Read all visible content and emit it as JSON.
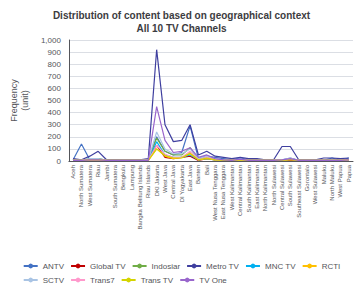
{
  "chart_data": {
    "type": "line",
    "title": "Distribution of content based on geographical context\nAll 10 TV Channels",
    "ylabel": "Frequency\n(unit)",
    "categories": [
      "Aceh",
      "North Sumatera",
      "West Sumatera",
      "Riau",
      "Jambi",
      "South Sumatera",
      "Bengkulu",
      "Lampung",
      "Bangka Belitung Islands",
      "Riau Islands",
      "DKI Jakarta",
      "West Java",
      "Central Java",
      "DI Yogyakarta",
      "East Java",
      "Banten",
      "Bali",
      "West Nusa Tenggara",
      "East Nusa Tenggara",
      "West Kalimantan",
      "Central Kalimantan",
      "South Kalimantan",
      "East Kalimantan",
      "North Kalimantan",
      "North Sulawesi",
      "Central Sulawesi",
      "South Sulawesi",
      "Southeast Sulawesi",
      "Gorontalo",
      "West Sulawesi",
      "Maluku",
      "North Maluku",
      "West Papua",
      "Papua"
    ],
    "series": [
      {
        "name": "ANTV",
        "color": "#4472C4",
        "values": [
          10,
          140,
          10,
          20,
          5,
          10,
          5,
          5,
          5,
          10,
          200,
          80,
          50,
          70,
          290,
          20,
          40,
          30,
          20,
          10,
          25,
          10,
          10,
          5,
          5,
          10,
          25,
          5,
          5,
          5,
          5,
          25,
          5,
          25
        ]
      },
      {
        "name": "Global TV",
        "color": "#C00000",
        "values": [
          5,
          5,
          5,
          10,
          5,
          5,
          5,
          5,
          5,
          5,
          130,
          30,
          20,
          30,
          40,
          5,
          20,
          10,
          10,
          5,
          10,
          5,
          5,
          5,
          5,
          5,
          10,
          5,
          5,
          5,
          5,
          5,
          5,
          10
        ]
      },
      {
        "name": "Indosiar",
        "color": "#70AD47",
        "values": [
          5,
          5,
          20,
          20,
          5,
          5,
          5,
          5,
          5,
          5,
          190,
          80,
          50,
          50,
          110,
          10,
          30,
          10,
          10,
          5,
          10,
          5,
          5,
          5,
          5,
          5,
          20,
          5,
          5,
          5,
          5,
          5,
          5,
          10
        ]
      },
      {
        "name": "Metro TV",
        "color": "#3F3F9F",
        "values": [
          20,
          10,
          40,
          80,
          10,
          10,
          10,
          10,
          10,
          20,
          920,
          300,
          160,
          170,
          300,
          50,
          80,
          40,
          30,
          20,
          30,
          20,
          20,
          10,
          10,
          120,
          120,
          10,
          10,
          10,
          25,
          25,
          20,
          25
        ]
      },
      {
        "name": "MNC TV",
        "color": "#00B0F0",
        "values": [
          5,
          5,
          10,
          10,
          5,
          5,
          5,
          5,
          5,
          5,
          160,
          50,
          30,
          30,
          50,
          10,
          20,
          10,
          5,
          5,
          10,
          5,
          5,
          5,
          5,
          5,
          15,
          5,
          5,
          5,
          5,
          5,
          5,
          10
        ]
      },
      {
        "name": "RCTI",
        "color": "#FFC000",
        "values": [
          5,
          5,
          10,
          10,
          5,
          5,
          5,
          5,
          5,
          5,
          100,
          40,
          20,
          30,
          60,
          10,
          20,
          10,
          5,
          5,
          10,
          5,
          5,
          5,
          5,
          5,
          15,
          5,
          5,
          5,
          5,
          5,
          5,
          10
        ]
      },
      {
        "name": "SCTV",
        "color": "#A9C4E4",
        "values": [
          5,
          5,
          20,
          20,
          5,
          5,
          5,
          5,
          5,
          10,
          240,
          100,
          60,
          60,
          100,
          20,
          40,
          15,
          10,
          5,
          15,
          5,
          5,
          5,
          5,
          10,
          25,
          5,
          5,
          5,
          5,
          5,
          5,
          10
        ]
      },
      {
        "name": "Trans7",
        "color": "#FF99CC",
        "values": [
          5,
          5,
          10,
          10,
          5,
          5,
          5,
          5,
          5,
          5,
          130,
          55,
          30,
          30,
          80,
          10,
          30,
          10,
          5,
          5,
          10,
          5,
          5,
          5,
          5,
          5,
          15,
          5,
          5,
          5,
          5,
          5,
          5,
          10
        ]
      },
      {
        "name": "Trans TV",
        "color": "#D4D400",
        "values": [
          5,
          5,
          10,
          10,
          5,
          5,
          5,
          5,
          5,
          5,
          100,
          45,
          25,
          25,
          65,
          10,
          25,
          10,
          5,
          5,
          10,
          5,
          5,
          5,
          5,
          5,
          12,
          5,
          5,
          5,
          5,
          5,
          5,
          10
        ]
      },
      {
        "name": "TV One",
        "color": "#9966CC",
        "values": [
          5,
          5,
          10,
          10,
          5,
          5,
          5,
          5,
          5,
          5,
          450,
          170,
          70,
          80,
          110,
          30,
          50,
          20,
          10,
          5,
          15,
          5,
          5,
          5,
          5,
          10,
          20,
          5,
          5,
          5,
          5,
          5,
          5,
          10
        ]
      }
    ],
    "ylim": [
      0,
      1000
    ],
    "yticks": [
      0,
      100,
      200,
      300,
      400,
      500,
      600,
      700,
      800,
      900,
      1000
    ],
    "grid": true,
    "legend": "bottom"
  }
}
